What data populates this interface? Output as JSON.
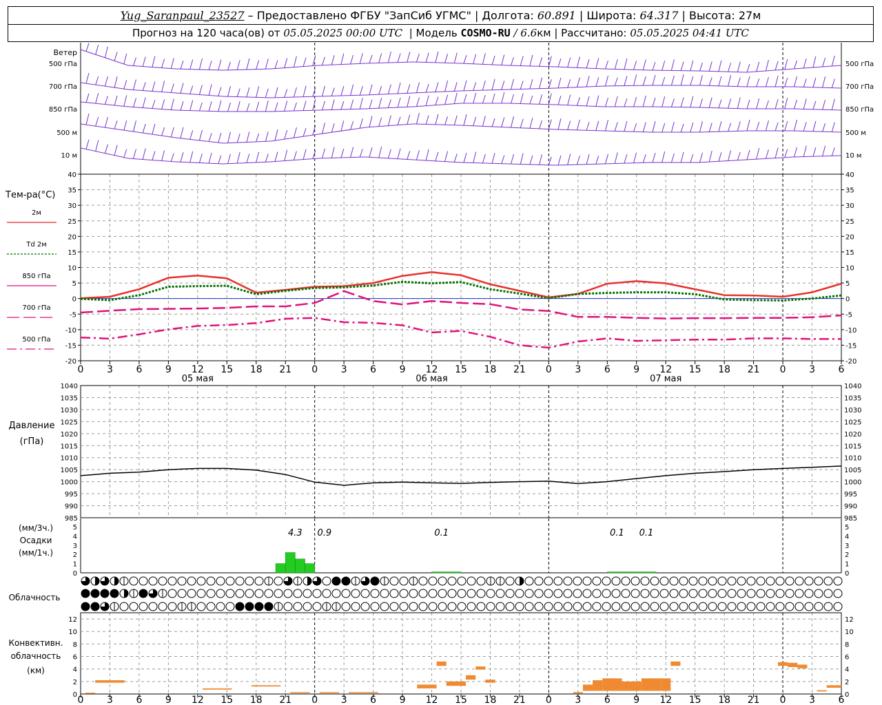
{
  "header": {
    "station": "Yug_Saranpaul_23527",
    "provider": "– Предоставлено ФГБУ \"ЗапСиб УГМС\"",
    "lon_label": "Долгота:",
    "lon": "60.891",
    "lat_label": "Широта:",
    "lat": "64.317",
    "alt_label": "Высота:",
    "alt": "27м",
    "forecast_prefix": "Прогноз на 120 часа(ов) от",
    "forecast_time": "05.05.2025 00:00 UTC",
    "model_label": "Модель",
    "model_name": "COSMO-RU",
    "model_res": "/ 6.6",
    "model_res_unit": "км",
    "calc_label": "Рассчитано:",
    "calc_time": "05.05.2025 04:41 UTC"
  },
  "wind_panel": {
    "title": "Ветер",
    "levels": [
      "500 гПа",
      "700 гПа",
      "850 гПа",
      "500 м",
      "10 м"
    ]
  },
  "temp_panel": {
    "title": "Тем-ра(°C)",
    "legend": [
      {
        "label": "2м",
        "color": "#e8202a",
        "dash": "solid"
      },
      {
        "label": "Td 2м",
        "color": "#007000",
        "dash": "dotted"
      },
      {
        "label": "850 гПа",
        "color": "#e0107a",
        "dash": "solid"
      },
      {
        "label": "700 гПа",
        "color": "#e0107a",
        "dash": "long"
      },
      {
        "label": "500 гПа",
        "color": "#e0107a",
        "dash": "dashdot"
      }
    ],
    "ticks": [
      40,
      35,
      30,
      25,
      20,
      15,
      10,
      5,
      0,
      -5,
      -10,
      -15,
      -20
    ]
  },
  "hour_labels": [
    "0",
    "3",
    "6",
    "9",
    "12",
    "15",
    "18",
    "21",
    "0",
    "3",
    "6",
    "9",
    "12",
    "15",
    "18",
    "21",
    "0",
    "3",
    "6",
    "9",
    "12",
    "15",
    "18",
    "21",
    "0",
    "3",
    "6"
  ],
  "date_labels": [
    "05 мая",
    "06 мая",
    "07 мая"
  ],
  "pressure_panel": {
    "title": "Давление",
    "unit": "(гПа)",
    "ticks": [
      1040,
      1035,
      1030,
      1025,
      1020,
      1015,
      1010,
      1005,
      1000,
      995,
      990,
      985
    ]
  },
  "precip_panel": {
    "label_3h": "(мм/3ч.)",
    "title": "Осадки",
    "label_1h": "(мм/1ч.)",
    "ticks": [
      5,
      4,
      3,
      2,
      1,
      0
    ],
    "totals": [
      {
        "h": 22,
        "text": "4.3"
      },
      {
        "h": 25,
        "text": "0.9"
      },
      {
        "h": 37,
        "text": "0.1"
      },
      {
        "h": 55,
        "text": "0.1"
      },
      {
        "h": 58,
        "text": "0.1"
      }
    ]
  },
  "cloud_panel": {
    "title": "Облачность",
    "rows": [
      "32321000000000000001031230441341001000000011020000000000000000000000000000000000000000000000000000000000000000000000000000000000000000000000000000000000000000000000000000000000000000000000000000000000000000000000000000000000000000000000000000000000000000000000000000000000000000000000000000000000000000000000000000000000000000000000000000000000000000000",
      "44442143100000000000000000000000000000000000000000000000000000000000000000000000000000000000000000000000000000000000000000000000000000000000000000000000000000000000000000000000000000000000000000000000000000000000000000000000000000000000000000000000000000000000000000000000000000000000000000000000000000000000000000000000000000000000000000000000000",
      "44310000001100004444100001100000000000000000000000000000000000000000000000000000000000000000000000000000000000000000000000000000000000000000000000000000000000000000000000000000000000000000000000000000000000000000000000000000000000000000000000000000000000000000000000000000000000000000000000000000000000000000000000000000000000000000000000000000000000"
    ]
  },
  "conv_panel": {
    "title1": "Конвективн.",
    "title2": "облачность",
    "unit": "(км)",
    "ticks": [
      12,
      10,
      8,
      6,
      4,
      2,
      0
    ],
    "color": "#f08a32"
  },
  "chart_data": [
    {
      "type": "line",
      "title": "Тем-ра(°C)",
      "x_unit": "hours since 05.05.2025 00:00 UTC",
      "ylim": [
        -20,
        40
      ],
      "x": [
        0,
        3,
        6,
        9,
        12,
        15,
        18,
        21,
        24,
        27,
        30,
        33,
        36,
        39,
        42,
        45,
        48,
        51,
        54,
        57,
        60,
        63,
        66,
        69,
        72,
        75,
        78
      ],
      "series": [
        {
          "name": "2м",
          "values": [
            0.1,
            0.6,
            3.0,
            6.7,
            7.4,
            6.5,
            1.9,
            2.8,
            3.8,
            4.0,
            5.0,
            7.3,
            8.5,
            7.5,
            4.6,
            2.5,
            0.4,
            1.5,
            4.8,
            5.6,
            4.9,
            3.0,
            1.1,
            1.0,
            0.6,
            2.0,
            4.8
          ]
        },
        {
          "name": "Td 2м",
          "values": [
            -0.1,
            -0.5,
            1.1,
            3.8,
            4.0,
            4.1,
            1.4,
            2.5,
            3.4,
            3.6,
            4.2,
            5.4,
            4.9,
            5.3,
            3.0,
            1.6,
            0.1,
            1.5,
            1.8,
            2.0,
            2.0,
            1.4,
            -0.3,
            -0.5,
            -0.6,
            0.0,
            1.0
          ]
        },
        {
          "name": "850 гПа",
          "values": [
            -4.5,
            -3.9,
            -3.4,
            -3.3,
            -3.2,
            -3.0,
            -2.5,
            -2.5,
            -1.4,
            2.4,
            -0.8,
            -1.9,
            -0.8,
            -1.4,
            -1.8,
            -3.5,
            -4.0,
            -5.9,
            -5.9,
            -6.2,
            -6.4,
            -6.3,
            -6.3,
            -6.2,
            -6.2,
            -6.0,
            -5.4
          ]
        },
        {
          "name": "700 гПа",
          "values": [
            -4.5,
            -3.9,
            -3.4,
            -3.3,
            -3.2,
            -3.0,
            -2.5,
            -2.5,
            -1.4,
            2.4,
            -0.8,
            -1.9,
            -0.8,
            -1.4,
            -1.8,
            -3.5,
            -4.0,
            -5.9,
            -5.9,
            -6.2,
            -6.4,
            -6.3,
            -6.3,
            -6.2,
            -6.2,
            -6.0,
            -5.4
          ]
        },
        {
          "name": "500 гПа",
          "values": [
            -12.5,
            -12.9,
            -11.5,
            -9.9,
            -8.8,
            -8.5,
            -7.9,
            -6.5,
            -6.2,
            -7.6,
            -7.8,
            -8.6,
            -10.9,
            -10.4,
            -12.3,
            -15.0,
            -15.8,
            -13.8,
            -12.8,
            -13.6,
            -13.4,
            -13.2,
            -13.2,
            -12.8,
            -12.8,
            -13.0,
            -13.0
          ]
        }
      ]
    },
    {
      "type": "line",
      "title": "Давление",
      "x_unit": "hours since 05.05.2025 00:00 UTC",
      "ylim": [
        985,
        1040
      ],
      "x": [
        0,
        3,
        6,
        9,
        12,
        15,
        18,
        21,
        24,
        27,
        30,
        33,
        36,
        39,
        42,
        45,
        48,
        51,
        54,
        57,
        60,
        63,
        66,
        69,
        72,
        75,
        78
      ],
      "series": [
        {
          "name": "",
          "values": [
            1002.5,
            1003.5,
            1004.0,
            1005.0,
            1005.5,
            1005.5,
            1004.8,
            1003.0,
            999.8,
            998.5,
            999.5,
            999.8,
            999.5,
            999.3,
            999.7,
            1000.0,
            1000.2,
            999.2,
            1000.0,
            1001.3,
            1002.5,
            1003.5,
            1004.2,
            1005.0,
            1005.5,
            1006.0,
            1006.5
          ]
        }
      ]
    },
    {
      "type": "bar",
      "title": "Осадки",
      "x_unit": "hours since 05.05.2025 00:00 UTC",
      "ylim": [
        0,
        5
      ],
      "x": [
        21,
        22,
        23,
        24,
        37,
        38,
        39,
        55,
        56,
        57,
        58,
        59
      ],
      "values": [
        1.0,
        2.2,
        1.5,
        1.0,
        0.1,
        0.1,
        0.1,
        0.1,
        0.1,
        0.1,
        0.1,
        0.1
      ]
    },
    {
      "type": "bar",
      "title": "Конвективн. облачность",
      "x_unit": "hours since 05.05.2025 00:00 UTC",
      "ylim": [
        0,
        13
      ],
      "segments": [
        {
          "x0": 0.5,
          "x1": 1.5,
          "y0": 0.1,
          "y1": 0.2
        },
        {
          "x0": 1.5,
          "x1": 4.5,
          "y0": 1.8,
          "y1": 2.2
        },
        {
          "x0": 12.5,
          "x1": 15.5,
          "y0": 0.7,
          "y1": 0.9
        },
        {
          "x0": 17.5,
          "x1": 20.5,
          "y0": 1.2,
          "y1": 1.4
        },
        {
          "x0": 21.5,
          "x1": 23.5,
          "y0": 0.2,
          "y1": 0.3
        },
        {
          "x0": 24.5,
          "x1": 26.5,
          "y0": 0.2,
          "y1": 0.3
        },
        {
          "x0": 27.5,
          "x1": 30.5,
          "y0": 0.2,
          "y1": 0.3
        },
        {
          "x0": 34.5,
          "x1": 36.5,
          "y0": 0.9,
          "y1": 1.5
        },
        {
          "x0": 36.5,
          "x1": 37.5,
          "y0": 4.5,
          "y1": 5.2
        },
        {
          "x0": 37.5,
          "x1": 39.5,
          "y0": 1.3,
          "y1": 2.0
        },
        {
          "x0": 39.5,
          "x1": 40.5,
          "y0": 2.3,
          "y1": 3.0
        },
        {
          "x0": 40.5,
          "x1": 41.5,
          "y0": 3.9,
          "y1": 4.4
        },
        {
          "x0": 41.5,
          "x1": 42.5,
          "y0": 1.8,
          "y1": 2.3
        },
        {
          "x0": 50.5,
          "x1": 51.5,
          "y0": 0.1,
          "y1": 0.3
        },
        {
          "x0": 51.5,
          "x1": 52.5,
          "y0": 0.5,
          "y1": 1.5
        },
        {
          "x0": 52.5,
          "x1": 53.5,
          "y0": 0.5,
          "y1": 2.2
        },
        {
          "x0": 53.5,
          "x1": 55.5,
          "y0": 0.5,
          "y1": 2.5
        },
        {
          "x0": 55.5,
          "x1": 57.5,
          "y0": 0.5,
          "y1": 2.0
        },
        {
          "x0": 57.5,
          "x1": 59.5,
          "y0": 0.5,
          "y1": 2.5
        },
        {
          "x0": 59.5,
          "x1": 60.5,
          "y0": 0.5,
          "y1": 2.5
        },
        {
          "x0": 60.5,
          "x1": 61.5,
          "y0": 4.5,
          "y1": 5.2
        },
        {
          "x0": 71.5,
          "x1": 72.5,
          "y0": 4.5,
          "y1": 5.1
        },
        {
          "x0": 72.5,
          "x1": 73.5,
          "y0": 4.3,
          "y1": 5.0
        },
        {
          "x0": 73.5,
          "x1": 74.5,
          "y0": 4.1,
          "y1": 4.7
        },
        {
          "x0": 75.5,
          "x1": 76.5,
          "y0": 0.4,
          "y1": 0.6
        },
        {
          "x0": 76.5,
          "x1": 78,
          "y0": 1.0,
          "y1": 1.4
        }
      ]
    }
  ]
}
